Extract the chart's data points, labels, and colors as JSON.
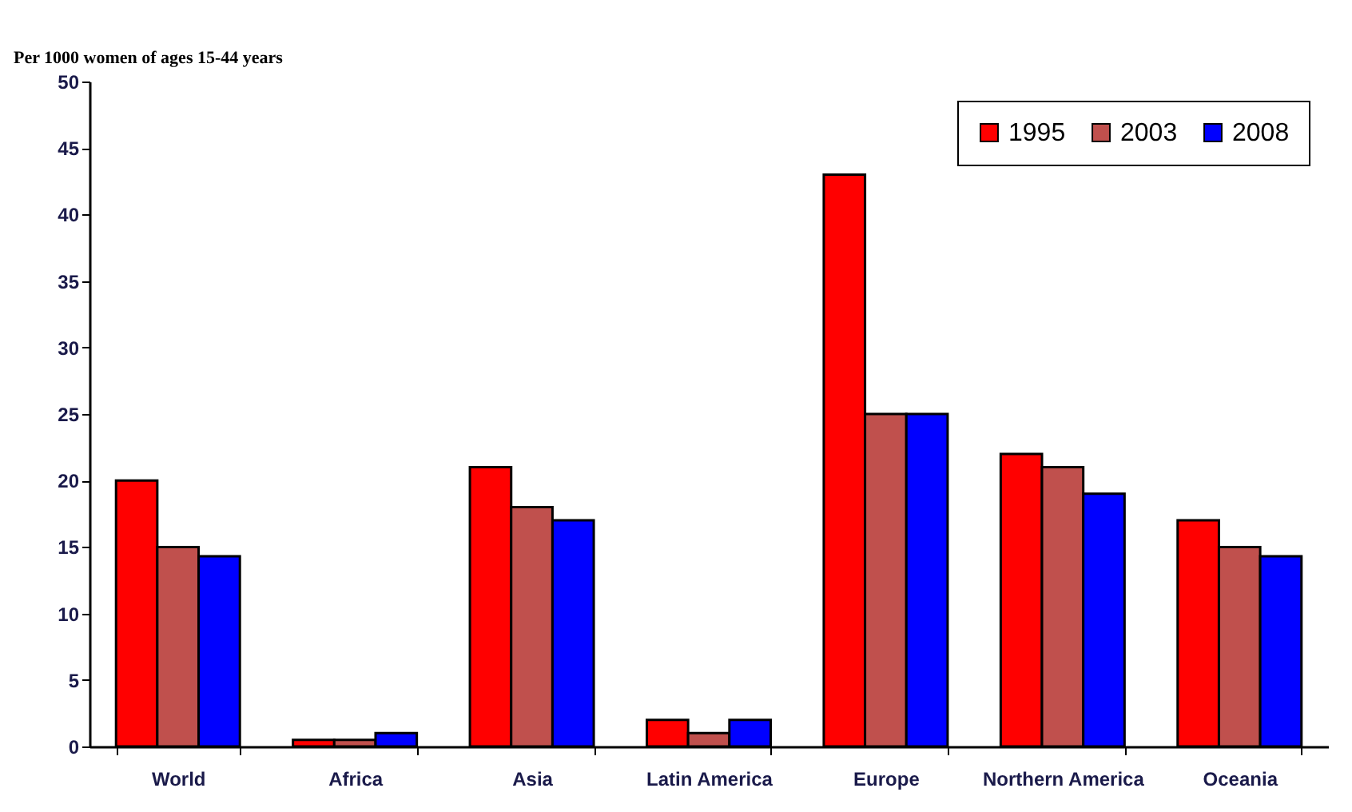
{
  "chart_data": {
    "type": "bar",
    "ylabel": "Per 1000 women of ages 15-44 years",
    "categories": [
      "World",
      "Africa",
      "Asia",
      "Latin America",
      "Europe",
      "Northern America",
      "Oceania"
    ],
    "series": [
      {
        "name": "1995",
        "color": "#ff0000",
        "values": [
          20,
          0.5,
          21,
          2,
          43,
          22,
          17
        ]
      },
      {
        "name": "2003",
        "color": "#c0504d",
        "values": [
          15,
          0.5,
          18,
          1,
          25,
          21,
          15
        ]
      },
      {
        "name": "2008",
        "color": "#0000ff",
        "values": [
          14.3,
          1,
          17,
          2,
          25,
          19,
          14.3
        ]
      }
    ],
    "ylim": [
      0,
      50
    ],
    "yticks": [
      0,
      5,
      10,
      15,
      20,
      25,
      30,
      35,
      40,
      45,
      50
    ],
    "grid": false,
    "legend": "top right"
  }
}
